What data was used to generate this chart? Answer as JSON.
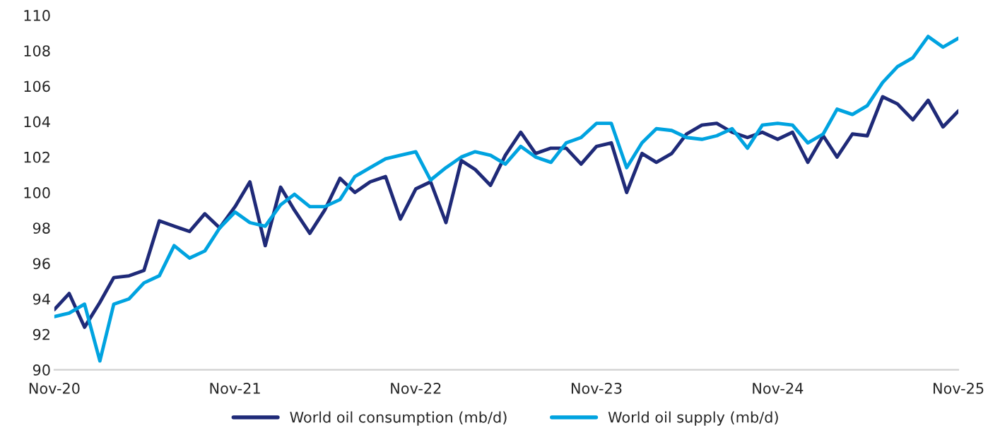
{
  "chart_data": {
    "type": "line",
    "x": [
      "2020-11",
      "2020-12",
      "2021-01",
      "2021-02",
      "2021-03",
      "2021-04",
      "2021-05",
      "2021-06",
      "2021-07",
      "2021-08",
      "2021-09",
      "2021-10",
      "2021-11",
      "2021-12",
      "2022-01",
      "2022-02",
      "2022-03",
      "2022-04",
      "2022-05",
      "2022-06",
      "2022-07",
      "2022-08",
      "2022-09",
      "2022-10",
      "2022-11",
      "2022-12",
      "2023-01",
      "2023-02",
      "2023-03",
      "2023-04",
      "2023-05",
      "2023-06",
      "2023-07",
      "2023-08",
      "2023-09",
      "2023-10",
      "2023-11",
      "2023-12",
      "2024-01",
      "2024-02",
      "2024-03",
      "2024-04",
      "2024-05",
      "2024-06",
      "2024-07",
      "2024-08",
      "2024-09",
      "2024-10",
      "2024-11",
      "2024-12",
      "2025-01",
      "2025-02",
      "2025-03",
      "2025-04",
      "2025-05",
      "2025-06",
      "2025-07",
      "2025-08",
      "2025-09",
      "2025-10",
      "2025-11"
    ],
    "series": [
      {
        "name": "World oil consumption (mb/d)",
        "color": "#1f2a78",
        "values": [
          93.4,
          94.3,
          92.4,
          93.8,
          95.2,
          95.3,
          95.6,
          98.4,
          98.1,
          97.8,
          98.8,
          98.0,
          99.2,
          100.6,
          97.0,
          100.3,
          99.0,
          97.7,
          99.0,
          100.8,
          100.0,
          100.6,
          100.9,
          98.5,
          100.2,
          100.6,
          98.3,
          101.8,
          101.3,
          100.4,
          102.1,
          103.4,
          102.2,
          102.5,
          102.5,
          101.6,
          102.6,
          102.8,
          100.0,
          102.2,
          101.7,
          102.2,
          103.3,
          103.8,
          103.9,
          103.4,
          103.1,
          103.4,
          103.0,
          103.4,
          101.7,
          103.2,
          102.0,
          103.3,
          103.2,
          105.4,
          105.0,
          104.1,
          105.2,
          103.7,
          104.6
        ]
      },
      {
        "name": "World oil supply (mb/d)",
        "color": "#00a3e0",
        "values": [
          93.0,
          93.2,
          93.7,
          90.5,
          93.7,
          94.0,
          94.9,
          95.3,
          97.0,
          96.3,
          96.7,
          98.0,
          98.9,
          98.3,
          98.1,
          99.3,
          99.9,
          99.2,
          99.2,
          99.6,
          100.9,
          101.4,
          101.9,
          102.1,
          102.3,
          100.7,
          101.4,
          102.0,
          102.3,
          102.1,
          101.6,
          102.6,
          102.0,
          101.7,
          102.8,
          103.1,
          103.9,
          103.9,
          101.4,
          102.8,
          103.6,
          103.5,
          103.1,
          103.0,
          103.2,
          103.6,
          102.5,
          103.8,
          103.9,
          103.8,
          102.8,
          103.3,
          104.7,
          104.4,
          104.9,
          106.2,
          107.1,
          107.6,
          108.8,
          108.2,
          108.7
        ]
      }
    ],
    "xlim": [
      "2020-11",
      "2025-11"
    ],
    "xticks": [
      {
        "value": "2020-11",
        "label": "Nov-20"
      },
      {
        "value": "2021-11",
        "label": "Nov-21"
      },
      {
        "value": "2022-11",
        "label": "Nov-22"
      },
      {
        "value": "2023-11",
        "label": "Nov-23"
      },
      {
        "value": "2024-11",
        "label": "Nov-24"
      },
      {
        "value": "2025-11",
        "label": "Nov-25"
      }
    ],
    "ylim": [
      90,
      110
    ],
    "yticks": [
      90,
      92,
      94,
      96,
      98,
      100,
      102,
      104,
      106,
      108,
      110
    ],
    "grid": false,
    "legend": "bottom",
    "marker": "none",
    "line_style": "solid"
  }
}
